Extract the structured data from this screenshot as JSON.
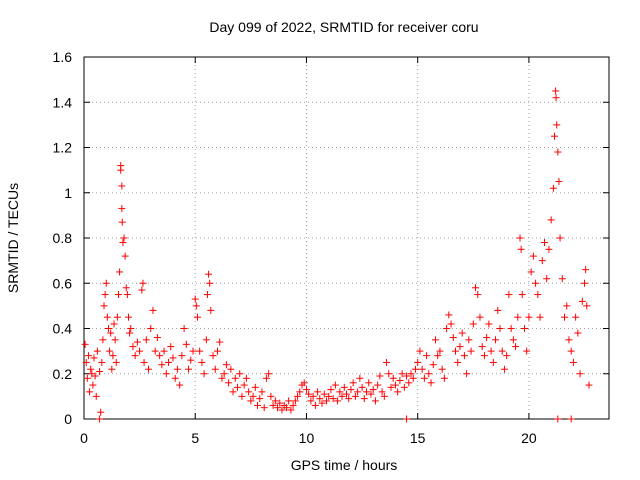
{
  "chart_data": {
    "type": "scatter",
    "title": "Day 099 of 2022, SRMTID for receiver coru",
    "xlabel": "GPS time / hours",
    "ylabel": "SRMTID / TECUs",
    "xlim": [
      0,
      23.6
    ],
    "ylim": [
      0,
      1.6
    ],
    "x_ticks": [
      0,
      5,
      10,
      15,
      20
    ],
    "x_tick_labels": [
      "0",
      "5",
      "10",
      "15",
      "20"
    ],
    "y_ticks": [
      0,
      0.2,
      0.4,
      0.6,
      0.8,
      1.0,
      1.2,
      1.4,
      1.6
    ],
    "y_tick_labels": [
      "0",
      "0.2",
      "0.4",
      "0.6",
      "0.8",
      "1",
      "1.2",
      "1.4",
      "1.6"
    ],
    "grid": true,
    "marker": "+",
    "color": "#ff0000",
    "series": [
      {
        "name": "SRMTID",
        "points": [
          [
            0.05,
            0.33
          ],
          [
            0.1,
            0.25
          ],
          [
            0.15,
            0.18
          ],
          [
            0.2,
            0.28
          ],
          [
            0.25,
            0.12
          ],
          [
            0.3,
            0.22
          ],
          [
            0.35,
            0.2
          ],
          [
            0.4,
            0.15
          ],
          [
            0.45,
            0.27
          ],
          [
            0.5,
            0.19
          ],
          [
            0.55,
            0.1
          ],
          [
            0.6,
            0.3
          ],
          [
            0.7,
            0.21
          ],
          [
            0.75,
            0.03
          ],
          [
            0.8,
            0.25
          ],
          [
            0.85,
            0.35
          ],
          [
            0.9,
            0.5
          ],
          [
            0.95,
            0.55
          ],
          [
            1.0,
            0.6
          ],
          [
            1.05,
            0.45
          ],
          [
            1.1,
            0.4
          ],
          [
            1.15,
            0.3
          ],
          [
            1.2,
            0.38
          ],
          [
            1.25,
            0.22
          ],
          [
            1.3,
            0.28
          ],
          [
            1.35,
            0.42
          ],
          [
            1.4,
            0.35
          ],
          [
            1.45,
            0.25
          ],
          [
            1.5,
            0.45
          ],
          [
            1.55,
            0.55
          ],
          [
            1.6,
            0.65
          ],
          [
            1.65,
            1.1
          ],
          [
            1.65,
            1.12
          ],
          [
            1.7,
            1.03
          ],
          [
            1.7,
            0.93
          ],
          [
            1.72,
            0.87
          ],
          [
            1.75,
            0.78
          ],
          [
            1.8,
            0.8
          ],
          [
            1.85,
            0.72
          ],
          [
            1.9,
            0.58
          ],
          [
            1.95,
            0.55
          ],
          [
            2.0,
            0.45
          ],
          [
            2.05,
            0.38
          ],
          [
            2.1,
            0.4
          ],
          [
            2.2,
            0.32
          ],
          [
            2.3,
            0.28
          ],
          [
            2.4,
            0.34
          ],
          [
            2.5,
            0.3
          ],
          [
            2.6,
            0.57
          ],
          [
            2.65,
            0.6
          ],
          [
            2.7,
            0.25
          ],
          [
            2.8,
            0.35
          ],
          [
            2.9,
            0.22
          ],
          [
            3.0,
            0.4
          ],
          [
            3.1,
            0.48
          ],
          [
            3.2,
            0.3
          ],
          [
            3.3,
            0.36
          ],
          [
            3.4,
            0.28
          ],
          [
            3.5,
            0.24
          ],
          [
            3.6,
            0.3
          ],
          [
            3.7,
            0.2
          ],
          [
            3.8,
            0.25
          ],
          [
            3.9,
            0.32
          ],
          [
            4.0,
            0.27
          ],
          [
            4.1,
            0.18
          ],
          [
            4.2,
            0.22
          ],
          [
            4.3,
            0.15
          ],
          [
            4.4,
            0.28
          ],
          [
            4.5,
            0.4
          ],
          [
            4.6,
            0.33
          ],
          [
            4.7,
            0.22
          ],
          [
            4.8,
            0.26
          ],
          [
            4.9,
            0.3
          ],
          [
            5.0,
            0.53
          ],
          [
            5.05,
            0.5
          ],
          [
            5.1,
            0.45
          ],
          [
            5.2,
            0.3
          ],
          [
            5.3,
            0.25
          ],
          [
            5.4,
            0.2
          ],
          [
            5.5,
            0.35
          ],
          [
            5.55,
            0.55
          ],
          [
            5.6,
            0.64
          ],
          [
            5.65,
            0.6
          ],
          [
            5.7,
            0.48
          ],
          [
            5.8,
            0.28
          ],
          [
            5.9,
            0.22
          ],
          [
            6.0,
            0.3
          ],
          [
            6.1,
            0.34
          ],
          [
            6.2,
            0.18
          ],
          [
            6.3,
            0.2
          ],
          [
            6.4,
            0.24
          ],
          [
            6.5,
            0.16
          ],
          [
            6.6,
            0.22
          ],
          [
            6.7,
            0.12
          ],
          [
            6.8,
            0.18
          ],
          [
            6.9,
            0.14
          ],
          [
            7.0,
            0.2
          ],
          [
            7.1,
            0.1
          ],
          [
            7.2,
            0.15
          ],
          [
            7.3,
            0.18
          ],
          [
            7.4,
            0.12
          ],
          [
            7.5,
            0.08
          ],
          [
            7.6,
            0.1
          ],
          [
            7.7,
            0.14
          ],
          [
            7.8,
            0.06
          ],
          [
            7.9,
            0.09
          ],
          [
            8.0,
            0.12
          ],
          [
            8.1,
            0.05
          ],
          [
            8.2,
            0.18
          ],
          [
            8.3,
            0.2
          ],
          [
            8.4,
            0.1
          ],
          [
            8.5,
            0.06
          ],
          [
            8.6,
            0.08
          ],
          [
            8.7,
            0.05
          ],
          [
            8.8,
            0.07
          ],
          [
            8.9,
            0.04
          ],
          [
            9.0,
            0.06
          ],
          [
            9.1,
            0.05
          ],
          [
            9.2,
            0.08
          ],
          [
            9.3,
            0.04
          ],
          [
            9.4,
            0.06
          ],
          [
            9.5,
            0.08
          ],
          [
            9.6,
            0.1
          ],
          [
            9.7,
            0.12
          ],
          [
            9.8,
            0.15
          ],
          [
            9.9,
            0.16
          ],
          [
            10.0,
            0.13
          ],
          [
            10.1,
            0.11
          ],
          [
            10.2,
            0.08
          ],
          [
            10.3,
            0.1
          ],
          [
            10.4,
            0.06
          ],
          [
            10.5,
            0.12
          ],
          [
            10.6,
            0.09
          ],
          [
            10.7,
            0.07
          ],
          [
            10.8,
            0.11
          ],
          [
            10.9,
            0.08
          ],
          [
            11.0,
            0.1
          ],
          [
            11.1,
            0.13
          ],
          [
            11.2,
            0.09
          ],
          [
            11.3,
            0.15
          ],
          [
            11.4,
            0.08
          ],
          [
            11.5,
            0.12
          ],
          [
            11.6,
            0.1
          ],
          [
            11.7,
            0.14
          ],
          [
            11.8,
            0.11
          ],
          [
            11.9,
            0.09
          ],
          [
            12.0,
            0.13
          ],
          [
            12.1,
            0.16
          ],
          [
            12.2,
            0.1
          ],
          [
            12.3,
            0.12
          ],
          [
            12.4,
            0.18
          ],
          [
            12.5,
            0.14
          ],
          [
            12.6,
            0.09
          ],
          [
            12.7,
            0.12
          ],
          [
            12.8,
            0.16
          ],
          [
            12.9,
            0.11
          ],
          [
            13.0,
            0.13
          ],
          [
            13.1,
            0.08
          ],
          [
            13.2,
            0.15
          ],
          [
            13.3,
            0.19
          ],
          [
            13.4,
            0.12
          ],
          [
            13.5,
            0.1
          ],
          [
            13.6,
            0.25
          ],
          [
            13.7,
            0.2
          ],
          [
            13.8,
            0.14
          ],
          [
            13.9,
            0.18
          ],
          [
            14.0,
            0.15
          ],
          [
            14.1,
            0.12
          ],
          [
            14.2,
            0.17
          ],
          [
            14.3,
            0.2
          ],
          [
            14.4,
            0.14
          ],
          [
            14.5,
            0.19
          ],
          [
            14.6,
            0.16
          ],
          [
            14.7,
            0.2
          ],
          [
            14.8,
            0.18
          ],
          [
            14.9,
            0.22
          ],
          [
            15.0,
            0.25
          ],
          [
            15.1,
            0.3
          ],
          [
            15.2,
            0.22
          ],
          [
            15.3,
            0.18
          ],
          [
            15.4,
            0.28
          ],
          [
            15.5,
            0.2
          ],
          [
            15.6,
            0.16
          ],
          [
            15.7,
            0.24
          ],
          [
            15.8,
            0.35
          ],
          [
            15.9,
            0.28
          ],
          [
            16.0,
            0.3
          ],
          [
            16.1,
            0.22
          ],
          [
            16.2,
            0.18
          ],
          [
            16.3,
            0.4
          ],
          [
            16.4,
            0.46
          ],
          [
            16.5,
            0.42
          ],
          [
            16.6,
            0.36
          ],
          [
            16.7,
            0.3
          ],
          [
            16.8,
            0.25
          ],
          [
            16.9,
            0.32
          ],
          [
            17.0,
            0.38
          ],
          [
            17.1,
            0.28
          ],
          [
            17.2,
            0.2
          ],
          [
            17.3,
            0.35
          ],
          [
            17.4,
            0.3
          ],
          [
            17.5,
            0.42
          ],
          [
            17.6,
            0.58
          ],
          [
            17.7,
            0.55
          ],
          [
            17.8,
            0.45
          ],
          [
            17.9,
            0.32
          ],
          [
            18.0,
            0.28
          ],
          [
            18.1,
            0.36
          ],
          [
            18.2,
            0.42
          ],
          [
            18.3,
            0.3
          ],
          [
            18.4,
            0.25
          ],
          [
            18.5,
            0.35
          ],
          [
            18.6,
            0.48
          ],
          [
            18.7,
            0.4
          ],
          [
            18.8,
            0.3
          ],
          [
            18.9,
            0.22
          ],
          [
            19.0,
            0.28
          ],
          [
            19.1,
            0.55
          ],
          [
            19.2,
            0.4
          ],
          [
            19.3,
            0.35
          ],
          [
            19.4,
            0.32
          ],
          [
            19.5,
            0.45
          ],
          [
            19.6,
            0.8
          ],
          [
            19.65,
            0.75
          ],
          [
            19.7,
            0.55
          ],
          [
            19.8,
            0.4
          ],
          [
            19.9,
            0.3
          ],
          [
            20.0,
            0.45
          ],
          [
            20.1,
            0.65
          ],
          [
            20.2,
            0.72
          ],
          [
            20.3,
            0.6
          ],
          [
            20.4,
            0.55
          ],
          [
            20.5,
            0.45
          ],
          [
            20.6,
            0.7
          ],
          [
            20.7,
            0.78
          ],
          [
            20.8,
            0.62
          ],
          [
            20.9,
            0.75
          ],
          [
            21.0,
            0.88
          ],
          [
            21.1,
            1.02
          ],
          [
            21.15,
            1.25
          ],
          [
            21.2,
            1.45
          ],
          [
            21.22,
            1.42
          ],
          [
            21.25,
            1.3
          ],
          [
            21.3,
            1.18
          ],
          [
            21.35,
            1.05
          ],
          [
            21.4,
            0.8
          ],
          [
            21.5,
            0.62
          ],
          [
            21.6,
            0.45
          ],
          [
            21.7,
            0.5
          ],
          [
            21.8,
            0.35
          ],
          [
            21.9,
            0.3
          ],
          [
            22.0,
            0.25
          ],
          [
            22.1,
            0.45
          ],
          [
            22.2,
            0.38
          ],
          [
            22.3,
            0.2
          ],
          [
            22.4,
            0.52
          ],
          [
            22.5,
            0.6
          ],
          [
            22.55,
            0.66
          ],
          [
            22.6,
            0.5
          ],
          [
            22.7,
            0.15
          ]
        ]
      },
      {
        "name": "zero-level markers",
        "points": [
          [
            0.7,
            0.0
          ],
          [
            14.5,
            0.0
          ],
          [
            21.3,
            0.0
          ],
          [
            21.9,
            0.0
          ]
        ]
      }
    ]
  }
}
